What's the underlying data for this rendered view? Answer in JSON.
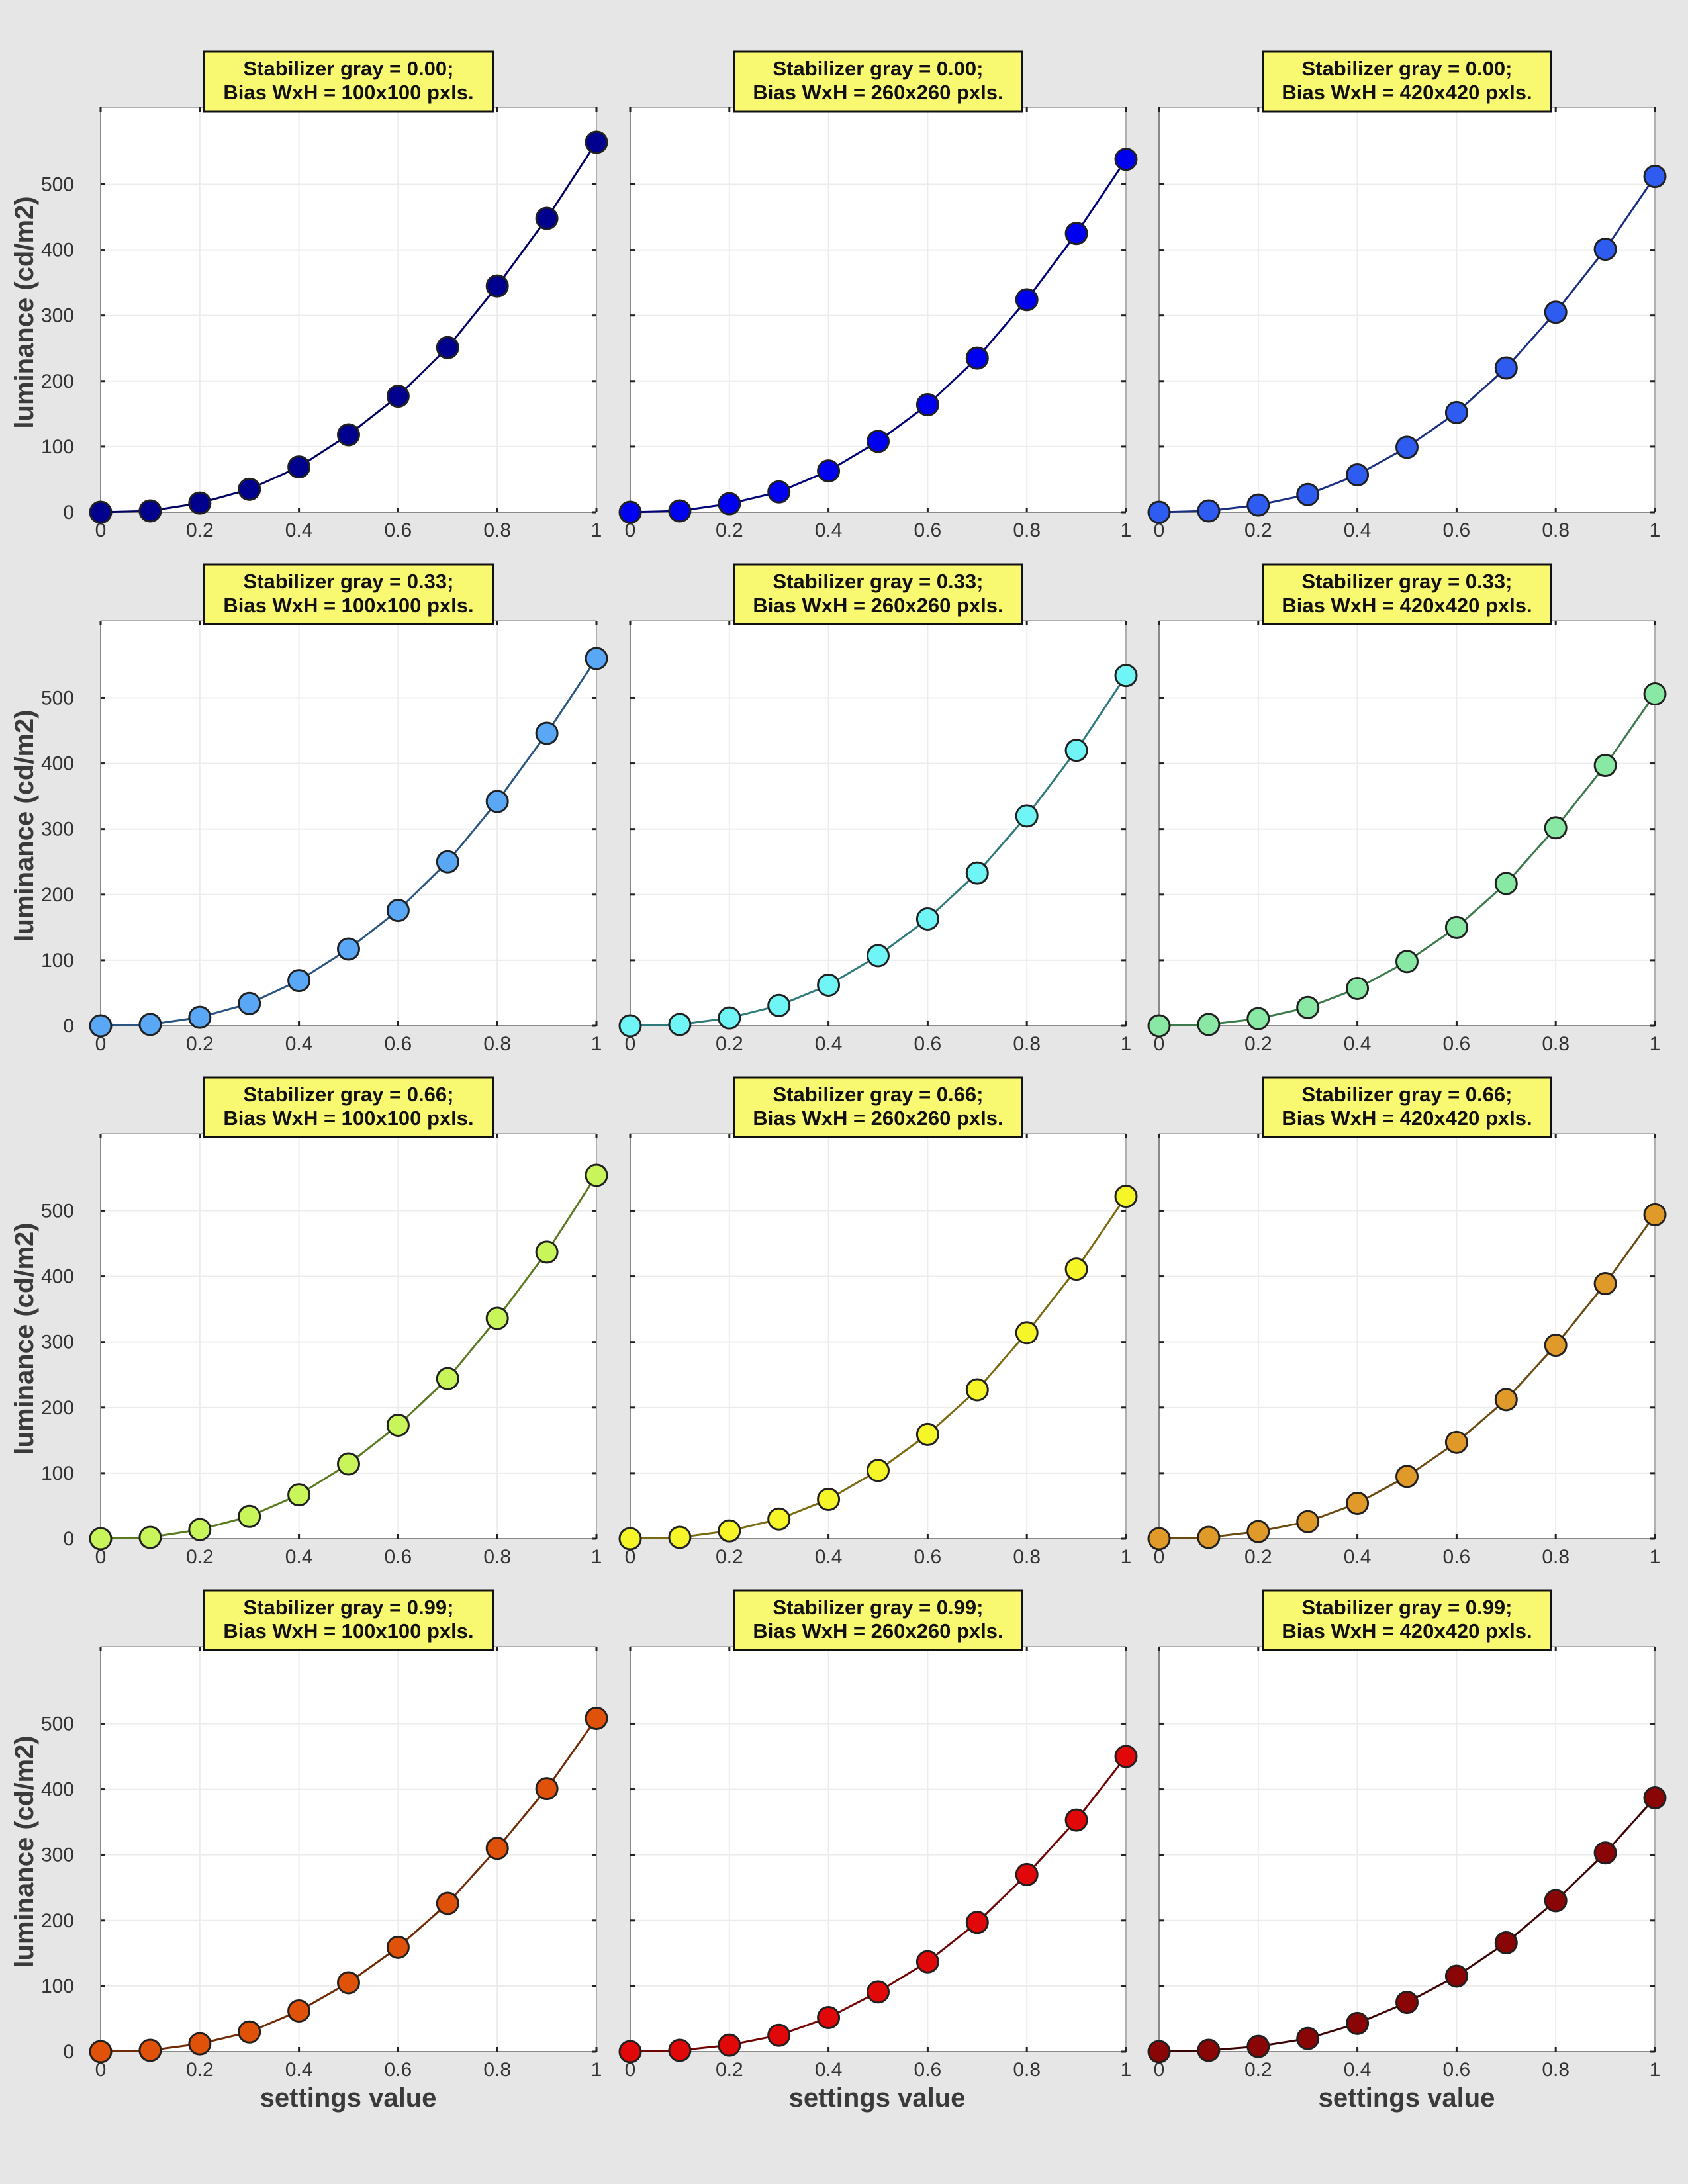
{
  "figure": {
    "ylabel": "luminance (cd/m2)",
    "xlabel": "settings value"
  },
  "chart_data": [
    {
      "type": "line",
      "title_line1": "Stabilizer gray = 0.00;",
      "title_line2": "Bias WxH = 100x100 pxls.",
      "xlim": [
        0,
        1
      ],
      "ylim": [
        0,
        560
      ],
      "grid": true,
      "x": [
        0,
        0.1,
        0.2,
        0.3,
        0.4,
        0.5,
        0.6,
        0.7,
        0.8,
        0.9,
        1
      ],
      "values": [
        0,
        2,
        14,
        35,
        69,
        118,
        177,
        251,
        345,
        448,
        564
      ],
      "xticks": [
        "0",
        "0.2",
        "0.4",
        "0.6",
        "0.8",
        "1"
      ],
      "yticks": [
        "0",
        "100",
        "200",
        "300",
        "400",
        "500"
      ],
      "color": "#00008f",
      "line_color": "#000060"
    },
    {
      "type": "line",
      "title_line1": "Stabilizer gray = 0.00;",
      "title_line2": "Bias WxH = 260x260 pxls.",
      "xlim": [
        0,
        1
      ],
      "ylim": [
        0,
        560
      ],
      "grid": true,
      "x": [
        0,
        0.1,
        0.2,
        0.3,
        0.4,
        0.5,
        0.6,
        0.7,
        0.8,
        0.9,
        1
      ],
      "values": [
        0,
        2,
        13,
        31,
        63,
        108,
        164,
        235,
        324,
        425,
        538
      ],
      "xticks": [
        "0",
        "0.2",
        "0.4",
        "0.6",
        "0.8",
        "1"
      ],
      "yticks": [],
      "color": "#0000f0",
      "line_color": "#00007a"
    },
    {
      "type": "line",
      "title_line1": "Stabilizer gray = 0.00;",
      "title_line2": "Bias WxH = 420x420 pxls.",
      "xlim": [
        0,
        1
      ],
      "ylim": [
        0,
        560
      ],
      "grid": true,
      "x": [
        0,
        0.1,
        0.2,
        0.3,
        0.4,
        0.5,
        0.6,
        0.7,
        0.8,
        0.9,
        1
      ],
      "values": [
        0,
        2,
        11,
        27,
        57,
        99,
        152,
        220,
        305,
        401,
        512
      ],
      "xticks": [
        "0",
        "0.2",
        "0.4",
        "0.6",
        "0.8",
        "1"
      ],
      "yticks": [],
      "color": "#2f5cf0",
      "line_color": "#1a2f80"
    },
    {
      "type": "line",
      "title_line1": "Stabilizer gray = 0.33;",
      "title_line2": "Bias WxH = 100x100 pxls.",
      "xlim": [
        0,
        1
      ],
      "ylim": [
        0,
        560
      ],
      "grid": true,
      "x": [
        0,
        0.1,
        0.2,
        0.3,
        0.4,
        0.5,
        0.6,
        0.7,
        0.8,
        0.9,
        1
      ],
      "values": [
        0,
        2,
        13,
        34,
        69,
        117,
        176,
        250,
        342,
        446,
        560
      ],
      "xticks": [
        "0",
        "0.2",
        "0.4",
        "0.6",
        "0.8",
        "1"
      ],
      "yticks": [
        "0",
        "100",
        "200",
        "300",
        "400",
        "500"
      ],
      "color": "#5aa8f5",
      "line_color": "#2a5580"
    },
    {
      "type": "line",
      "title_line1": "Stabilizer gray = 0.33;",
      "title_line2": "Bias WxH = 260x260 pxls.",
      "xlim": [
        0,
        1
      ],
      "ylim": [
        0,
        560
      ],
      "grid": true,
      "x": [
        0,
        0.1,
        0.2,
        0.3,
        0.4,
        0.5,
        0.6,
        0.7,
        0.8,
        0.9,
        1
      ],
      "values": [
        0,
        2,
        12,
        31,
        62,
        107,
        163,
        233,
        320,
        420,
        534
      ],
      "xticks": [
        "0",
        "0.2",
        "0.4",
        "0.6",
        "0.8",
        "1"
      ],
      "yticks": [],
      "color": "#6ff5f5",
      "line_color": "#2f7a7a"
    },
    {
      "type": "line",
      "title_line1": "Stabilizer gray = 0.33;",
      "title_line2": "Bias WxH = 420x420 pxls.",
      "xlim": [
        0,
        1
      ],
      "ylim": [
        0,
        560
      ],
      "grid": true,
      "x": [
        0,
        0.1,
        0.2,
        0.3,
        0.4,
        0.5,
        0.6,
        0.7,
        0.8,
        0.9,
        1
      ],
      "values": [
        0,
        2,
        11,
        28,
        57,
        98,
        150,
        217,
        302,
        397,
        506
      ],
      "xticks": [
        "0",
        "0.2",
        "0.4",
        "0.6",
        "0.8",
        "1"
      ],
      "yticks": [],
      "color": "#8ae8a5",
      "line_color": "#3c7a4c"
    },
    {
      "type": "line",
      "title_line1": "Stabilizer gray = 0.66;",
      "title_line2": "Bias WxH = 100x100 pxls.",
      "xlim": [
        0,
        1
      ],
      "ylim": [
        0,
        560
      ],
      "grid": true,
      "x": [
        0,
        0.1,
        0.2,
        0.3,
        0.4,
        0.5,
        0.6,
        0.7,
        0.8,
        0.9,
        1
      ],
      "values": [
        0,
        2,
        14,
        34,
        67,
        114,
        173,
        244,
        336,
        437,
        554
      ],
      "xticks": [
        "0",
        "0.2",
        "0.4",
        "0.6",
        "0.8",
        "1"
      ],
      "yticks": [
        "0",
        "100",
        "200",
        "300",
        "400",
        "500"
      ],
      "color": "#c8f55a",
      "line_color": "#5a7a20"
    },
    {
      "type": "line",
      "title_line1": "Stabilizer gray = 0.66;",
      "title_line2": "Bias WxH = 260x260 pxls.",
      "xlim": [
        0,
        1
      ],
      "ylim": [
        0,
        560
      ],
      "grid": true,
      "x": [
        0,
        0.1,
        0.2,
        0.3,
        0.4,
        0.5,
        0.6,
        0.7,
        0.8,
        0.9,
        1
      ],
      "values": [
        0,
        2,
        12,
        30,
        60,
        104,
        159,
        227,
        314,
        411,
        522
      ],
      "xticks": [
        "0",
        "0.2",
        "0.4",
        "0.6",
        "0.8",
        "1"
      ],
      "yticks": [],
      "color": "#f5f528",
      "line_color": "#7a6a10"
    },
    {
      "type": "line",
      "title_line1": "Stabilizer gray = 0.66;",
      "title_line2": "Bias WxH = 420x420 pxls.",
      "xlim": [
        0,
        1
      ],
      "ylim": [
        0,
        560
      ],
      "grid": true,
      "x": [
        0,
        0.1,
        0.2,
        0.3,
        0.4,
        0.5,
        0.6,
        0.7,
        0.8,
        0.9,
        1
      ],
      "values": [
        0,
        2,
        11,
        26,
        54,
        95,
        147,
        212,
        295,
        389,
        494
      ],
      "xticks": [
        "0",
        "0.2",
        "0.4",
        "0.6",
        "0.8",
        "1"
      ],
      "yticks": [],
      "color": "#e09a2a",
      "line_color": "#6a4a10"
    },
    {
      "type": "line",
      "title_line1": "Stabilizer gray = 0.99;",
      "title_line2": "Bias WxH = 100x100 pxls.",
      "xlim": [
        0,
        1
      ],
      "ylim": [
        0,
        560
      ],
      "grid": true,
      "x": [
        0,
        0.1,
        0.2,
        0.3,
        0.4,
        0.5,
        0.6,
        0.7,
        0.8,
        0.9,
        1
      ],
      "values": [
        0,
        2,
        12,
        30,
        62,
        105,
        159,
        226,
        310,
        401,
        508
      ],
      "xticks": [
        "0",
        "0.2",
        "0.4",
        "0.6",
        "0.8",
        "1"
      ],
      "yticks": [
        "0",
        "100",
        "200",
        "300",
        "400",
        "500"
      ],
      "color": "#e0520a",
      "line_color": "#702a05"
    },
    {
      "type": "line",
      "title_line1": "Stabilizer gray = 0.99;",
      "title_line2": "Bias WxH = 260x260 pxls.",
      "xlim": [
        0,
        1
      ],
      "ylim": [
        0,
        560
      ],
      "grid": true,
      "x": [
        0,
        0.1,
        0.2,
        0.3,
        0.4,
        0.5,
        0.6,
        0.7,
        0.8,
        0.9,
        1
      ],
      "values": [
        0,
        2,
        10,
        25,
        52,
        91,
        137,
        197,
        270,
        353,
        450
      ],
      "xticks": [
        "0",
        "0.2",
        "0.4",
        "0.6",
        "0.8",
        "1"
      ],
      "yticks": [],
      "color": "#e00808",
      "line_color": "#700404"
    },
    {
      "type": "line",
      "title_line1": "Stabilizer gray = 0.99;",
      "title_line2": "Bias WxH = 420x420 pxls.",
      "xlim": [
        0,
        1
      ],
      "ylim": [
        0,
        560
      ],
      "grid": true,
      "x": [
        0,
        0.1,
        0.2,
        0.3,
        0.4,
        0.5,
        0.6,
        0.7,
        0.8,
        0.9,
        1
      ],
      "values": [
        0,
        2,
        8,
        20,
        43,
        75,
        115,
        166,
        230,
        303,
        387
      ],
      "xticks": [
        "0",
        "0.2",
        "0.4",
        "0.6",
        "0.8",
        "1"
      ],
      "yticks": [],
      "color": "#8a0505",
      "line_color": "#3a0202"
    }
  ]
}
